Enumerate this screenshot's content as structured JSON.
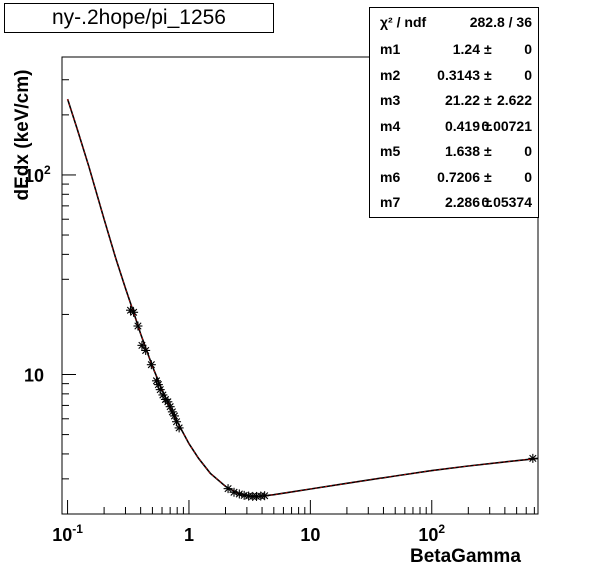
{
  "chart_data": {
    "type": "scatter",
    "title": "ny-.2hope/pi_1256",
    "xlabel": "BetaGamma",
    "ylabel": "dEdx (keV/cm)",
    "xscale": "log",
    "yscale": "log",
    "xlim": [
      0.09,
      750
    ],
    "ylim": [
      2.0,
      390
    ],
    "x_ticks": [
      {
        "v": 0.1,
        "base": "10",
        "exp": "-1"
      },
      {
        "v": 1,
        "base": "1",
        "exp": ""
      },
      {
        "v": 10,
        "base": "10",
        "exp": ""
      },
      {
        "v": 100,
        "base": "10",
        "exp": "2"
      }
    ],
    "y_ticks": [
      {
        "v": 10,
        "base": "10",
        "exp": ""
      },
      {
        "v": 100,
        "base": "10",
        "exp": "2"
      }
    ],
    "points": [
      {
        "x": 0.33,
        "y": 21.0
      },
      {
        "x": 0.35,
        "y": 20.5
      },
      {
        "x": 0.38,
        "y": 17.5
      },
      {
        "x": 0.41,
        "y": 14.0
      },
      {
        "x": 0.44,
        "y": 13.2
      },
      {
        "x": 0.49,
        "y": 11.2
      },
      {
        "x": 0.54,
        "y": 9.3
      },
      {
        "x": 0.56,
        "y": 8.9
      },
      {
        "x": 0.58,
        "y": 8.4
      },
      {
        "x": 0.61,
        "y": 7.9
      },
      {
        "x": 0.64,
        "y": 7.5
      },
      {
        "x": 0.67,
        "y": 7.3
      },
      {
        "x": 0.7,
        "y": 6.9
      },
      {
        "x": 0.73,
        "y": 6.5
      },
      {
        "x": 0.76,
        "y": 6.2
      },
      {
        "x": 0.79,
        "y": 5.8
      },
      {
        "x": 0.83,
        "y": 5.4
      },
      {
        "x": 2.1,
        "y": 2.68
      },
      {
        "x": 2.35,
        "y": 2.57
      },
      {
        "x": 2.6,
        "y": 2.52
      },
      {
        "x": 2.85,
        "y": 2.48
      },
      {
        "x": 3.1,
        "y": 2.46
      },
      {
        "x": 3.35,
        "y": 2.45
      },
      {
        "x": 3.6,
        "y": 2.45
      },
      {
        "x": 3.9,
        "y": 2.46
      },
      {
        "x": 4.2,
        "y": 2.47
      },
      {
        "x": 680,
        "y": 3.8
      }
    ],
    "fit_curve": [
      {
        "x": 0.1,
        "y": 240
      },
      {
        "x": 0.12,
        "y": 170
      },
      {
        "x": 0.15,
        "y": 110
      },
      {
        "x": 0.2,
        "y": 60
      },
      {
        "x": 0.25,
        "y": 38
      },
      {
        "x": 0.3,
        "y": 27
      },
      {
        "x": 0.35,
        "y": 20.5
      },
      {
        "x": 0.4,
        "y": 16
      },
      {
        "x": 0.5,
        "y": 11
      },
      {
        "x": 0.6,
        "y": 8.4
      },
      {
        "x": 0.7,
        "y": 6.8
      },
      {
        "x": 0.8,
        "y": 5.8
      },
      {
        "x": 1.0,
        "y": 4.5
      },
      {
        "x": 1.2,
        "y": 3.8
      },
      {
        "x": 1.5,
        "y": 3.2
      },
      {
        "x": 2.0,
        "y": 2.75
      },
      {
        "x": 2.5,
        "y": 2.55
      },
      {
        "x": 3.0,
        "y": 2.47
      },
      {
        "x": 3.5,
        "y": 2.45
      },
      {
        "x": 4.0,
        "y": 2.46
      },
      {
        "x": 5.0,
        "y": 2.5
      },
      {
        "x": 7.0,
        "y": 2.58
      },
      {
        "x": 10,
        "y": 2.67
      },
      {
        "x": 20,
        "y": 2.85
      },
      {
        "x": 50,
        "y": 3.1
      },
      {
        "x": 100,
        "y": 3.3
      },
      {
        "x": 200,
        "y": 3.48
      },
      {
        "x": 400,
        "y": 3.65
      },
      {
        "x": 750,
        "y": 3.8
      }
    ],
    "grid": false,
    "legend": "top-right"
  },
  "stats": {
    "chi_label": "χ² / ndf",
    "chi_value": "282.8 / 36",
    "params": [
      {
        "name": "m1",
        "value": "1.24",
        "error": "0"
      },
      {
        "name": "m2",
        "value": "0.3143",
        "error": "0"
      },
      {
        "name": "m3",
        "value": "21.22",
        "error": "2.622"
      },
      {
        "name": "m4",
        "value": "0.419",
        "error": "0.00721"
      },
      {
        "name": "m5",
        "value": "1.638",
        "error": "0"
      },
      {
        "name": "m6",
        "value": "0.7206",
        "error": "0"
      },
      {
        "name": "m7",
        "value": "2.286",
        "error": "0.05374"
      }
    ],
    "pm_symbol": "±"
  },
  "colors": {
    "fit_line": "#000000",
    "fit_overlay": "#ff0000",
    "markers": "#000000"
  }
}
